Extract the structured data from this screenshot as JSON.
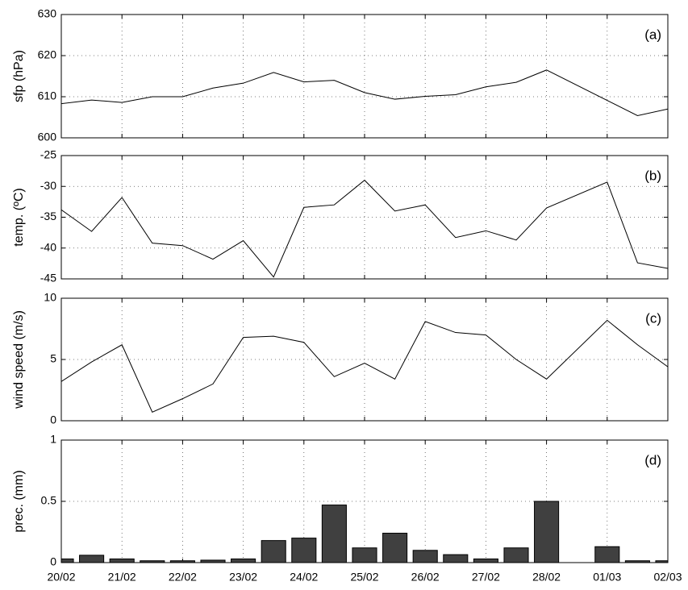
{
  "chart_data": [
    {
      "type": "line",
      "ylabel": "sfp (hPa)",
      "annotation": "(a)",
      "x": [
        0,
        0.5,
        1,
        1.5,
        2,
        2.5,
        3,
        3.5,
        4,
        4.5,
        5,
        5.5,
        6,
        6.5,
        7,
        7.5,
        8,
        9.5,
        10
      ],
      "values": [
        608.3,
        609.2,
        608.6,
        610,
        610,
        612.1,
        613.3,
        615.9,
        613.6,
        614,
        611,
        609.4,
        610.1,
        610.5,
        612.4,
        613.5,
        616.5,
        605.4,
        607
      ],
      "color": "#000000",
      "ylim": [
        600,
        630
      ],
      "yticks": [
        600,
        610,
        620,
        630
      ],
      "grid": true
    },
    {
      "type": "line",
      "ylabel": "temp. (ºC)",
      "annotation": "(b)",
      "x": [
        0,
        0.5,
        1,
        1.5,
        2,
        2.5,
        3,
        3.5,
        4,
        4.5,
        5,
        5.5,
        6,
        6.5,
        7,
        7.5,
        8,
        9,
        9.5,
        10
      ],
      "values": [
        -33.8,
        -37.3,
        -31.8,
        -39.2,
        -39.6,
        -41.8,
        -38.8,
        -44.7,
        -33.4,
        -33,
        -29,
        -34,
        -33,
        -38.3,
        -37.2,
        -38.7,
        -33.5,
        -29.3,
        -42.4,
        -43.3
      ],
      "color": "#000000",
      "ylim": [
        -45,
        -25
      ],
      "yticks": [
        -45,
        -40,
        -35,
        -30,
        -25
      ],
      "grid": true
    },
    {
      "type": "line",
      "ylabel": "wind speed (m/s)",
      "annotation": "(c)",
      "x": [
        0,
        0.5,
        1,
        1.5,
        2,
        2.5,
        3,
        3.5,
        4,
        4.5,
        5,
        5.5,
        6,
        6.5,
        7,
        7.5,
        8,
        9,
        9.5,
        10
      ],
      "values": [
        3.2,
        4.8,
        6.2,
        0.7,
        1.8,
        3,
        6.8,
        6.9,
        6.4,
        3.6,
        4.7,
        3.4,
        8.1,
        7.2,
        7,
        5,
        3.4,
        8.2,
        6.2,
        4.4
      ],
      "color": "#000000",
      "ylim": [
        0,
        10
      ],
      "yticks": [
        0,
        5,
        10
      ],
      "grid": true
    },
    {
      "type": "bar",
      "ylabel": "prec. (mm)",
      "annotation": "(d)",
      "x": [
        0,
        0.5,
        1,
        1.5,
        2,
        2.5,
        3,
        3.5,
        4,
        4.5,
        5,
        5.5,
        6,
        6.5,
        7,
        7.5,
        8,
        8.5,
        9,
        9.5,
        10
      ],
      "values": [
        0.03,
        0.06,
        0.03,
        0.015,
        0.015,
        0.02,
        0.03,
        0.18,
        0.2,
        0.47,
        0.12,
        0.24,
        0.1,
        0.065,
        0.03,
        0.12,
        0.5,
        0,
        0.13,
        0.015,
        0.015
      ],
      "color": "#404040",
      "ylim": [
        0,
        1
      ],
      "yticks": [
        0,
        0.5,
        1
      ],
      "grid": true,
      "xlim": [
        0,
        10
      ],
      "xticks": [
        {
          "value": 0,
          "label": "20/02"
        },
        {
          "value": 1,
          "label": "21/02"
        },
        {
          "value": 2,
          "label": "22/02"
        },
        {
          "value": 3,
          "label": "23/02"
        },
        {
          "value": 4,
          "label": "24/02"
        },
        {
          "value": 5,
          "label": "25/02"
        },
        {
          "value": 6,
          "label": "26/02"
        },
        {
          "value": 7,
          "label": "27/02"
        },
        {
          "value": 8,
          "label": "28/02"
        },
        {
          "value": 9,
          "label": "01/03"
        },
        {
          "value": 10,
          "label": "02/03"
        }
      ]
    }
  ]
}
